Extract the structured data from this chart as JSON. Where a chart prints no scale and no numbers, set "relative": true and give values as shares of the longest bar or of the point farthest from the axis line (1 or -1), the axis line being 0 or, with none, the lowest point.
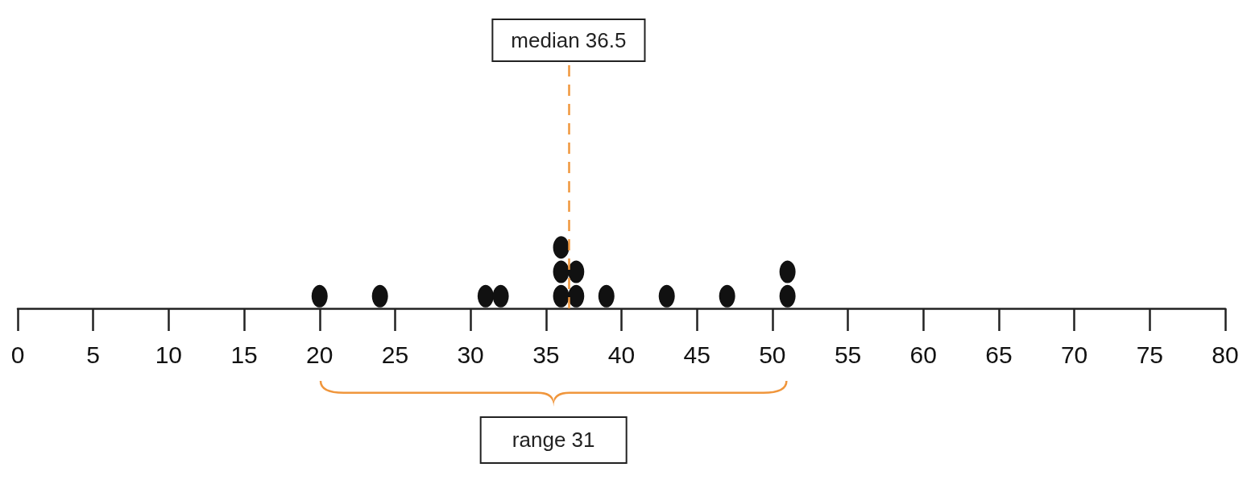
{
  "chart_data": {
    "type": "scatter",
    "x": [
      20,
      24,
      31,
      32,
      36,
      36,
      36,
      37,
      37,
      39,
      43,
      47,
      51,
      51
    ],
    "values": [
      0.2,
      0.2,
      0.2,
      0.2,
      0.2,
      0.6,
      1,
      0.2,
      0.6,
      0.2,
      0.2,
      0.2,
      0.2,
      0.6
    ],
    "relative": true,
    "color": "#111111",
    "marker": "circle",
    "xlim": [
      0,
      80
    ],
    "xticks": [
      0,
      5,
      10,
      15,
      20,
      25,
      30,
      35,
      40,
      45,
      50,
      55,
      60,
      65,
      70,
      75,
      80
    ],
    "tick_labels": "x",
    "grid": false,
    "ref_lines": [
      {
        "axis": "x",
        "value": 36.5,
        "label": "median 36.5",
        "color": "#f0963c",
        "line_style": "dashed"
      }
    ],
    "annotations": [
      "range 31"
    ]
  }
}
